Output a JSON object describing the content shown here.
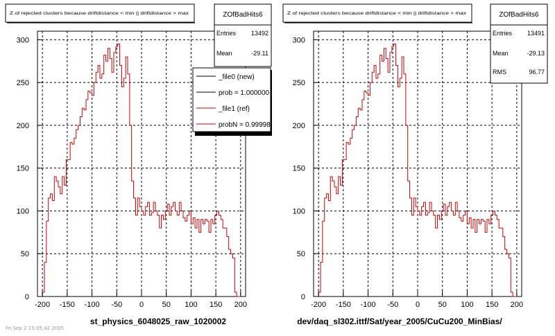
{
  "footer": "Fri Sep 2 15:05:42 2005",
  "chart_data": [
    {
      "type": "line",
      "title": "Z of rejected clusters because driftdistance < min || driftdistance > max",
      "xlabel": "st_physics_6048025_raw_1020002",
      "ylabel": "",
      "xlim": [
        -210,
        210
      ],
      "ylim": [
        0,
        310
      ],
      "grid": true,
      "x_ticks": [
        "-200",
        "-150",
        "-100",
        "-50",
        "0",
        "50",
        "100",
        "150",
        "200"
      ],
      "y_ticks": [
        "0",
        "50",
        "100",
        "150",
        "200",
        "250",
        "300"
      ],
      "stats": {
        "name": "ZOfBadHits6",
        "rows": [
          {
            "label": "Entries",
            "value": "13492"
          },
          {
            "label": "Mean",
            "value": "-29.11"
          }
        ]
      },
      "legend": {
        "placement": "top-right",
        "entries": [
          {
            "label": "_file0 (new)",
            "color": "#000000"
          },
          {
            "label": "prob = 1.000000",
            "color": "#000000"
          },
          {
            "label": "_file1 (ref)",
            "color": "#cc0000"
          },
          {
            "label": "probN = 0.99998",
            "color": "#cc0000"
          }
        ]
      },
      "series": [
        {
          "color": "#cc0000",
          "bin_low": -200,
          "bin_width": 4,
          "values": [
            5,
            40,
            88,
            115,
            120,
            112,
            140,
            135,
            128,
            120,
            140,
            130,
            160,
            160,
            180,
            178,
            185,
            195,
            200,
            210,
            220,
            218,
            230,
            240,
            238,
            235,
            250,
            262,
            270,
            255,
            260,
            282,
            275,
            290,
            278,
            262,
            285,
            292,
            295,
            270,
            245,
            255,
            280,
            260,
            200,
            135,
            115,
            95,
            115,
            105,
            100,
            95,
            105,
            110,
            95,
            98,
            110,
            100,
            95,
            80,
            95,
            90,
            100,
            108,
            95,
            105,
            110,
            100,
            95,
            110,
            100,
            92,
            88,
            95,
            100,
            85,
            92,
            80,
            90,
            75,
            90,
            85,
            90,
            88,
            75,
            90,
            85,
            95,
            100,
            95,
            90,
            80,
            80,
            70,
            55,
            50,
            45,
            5,
            0,
            0
          ]
        }
      ]
    },
    {
      "type": "line",
      "title": "Z of rejected clusters because driftdistance < min || driftdistance > max",
      "xlabel": "dev/daq_sl302.ittf/Sat/year_2005/CuCu200_MinBias/",
      "ylabel": "",
      "xlim": [
        -210,
        210
      ],
      "ylim": [
        0,
        310
      ],
      "grid": true,
      "x_ticks": [
        "-200",
        "-150",
        "-100",
        "-50",
        "0",
        "50",
        "100",
        "150",
        "200"
      ],
      "y_ticks": [
        "0",
        "50",
        "100",
        "150",
        "200",
        "250",
        "300"
      ],
      "stats": {
        "name": "ZOfBadHits6",
        "rows": [
          {
            "label": "Entries",
            "value": "13491"
          },
          {
            "label": "Mean",
            "value": "-29.13"
          },
          {
            "label": "RMS",
            "value": "96.77"
          }
        ]
      },
      "series": [
        {
          "color": "#cc0000",
          "bin_low": -200,
          "bin_width": 4,
          "values": [
            5,
            40,
            88,
            115,
            120,
            112,
            140,
            135,
            128,
            120,
            140,
            130,
            160,
            160,
            180,
            178,
            185,
            195,
            200,
            210,
            220,
            218,
            230,
            240,
            238,
            235,
            250,
            262,
            270,
            255,
            260,
            282,
            275,
            290,
            278,
            262,
            285,
            292,
            295,
            270,
            245,
            255,
            280,
            260,
            200,
            135,
            115,
            95,
            115,
            105,
            100,
            95,
            105,
            110,
            95,
            98,
            110,
            100,
            95,
            80,
            95,
            90,
            100,
            108,
            95,
            105,
            110,
            100,
            95,
            110,
            100,
            92,
            88,
            95,
            100,
            85,
            92,
            80,
            90,
            75,
            90,
            85,
            90,
            88,
            75,
            90,
            85,
            95,
            100,
            95,
            90,
            80,
            80,
            70,
            55,
            50,
            45,
            5,
            0,
            0
          ]
        }
      ]
    }
  ]
}
